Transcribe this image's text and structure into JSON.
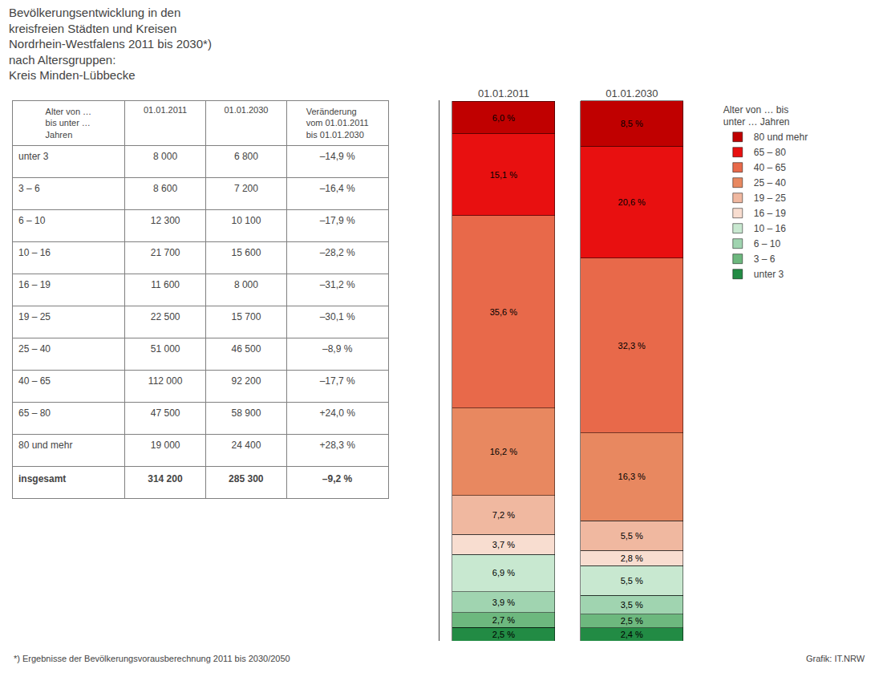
{
  "chart_data": [
    {
      "type": "bar",
      "title": "Bevölkerungsentwicklung in den\nkreisfreien Städten und Kreisen\nNordrhein-Westfalens 2011 bis 2030*)\nnach Altersgruppen:\nKreis Minden-Lübbecke",
      "categories": [
        "01.01.2011",
        "01.01.2030"
      ],
      "series": [
        {
          "name": "unter 3",
          "color": "#228b44",
          "values": [
            2.5,
            2.4
          ],
          "value_labels": [
            "2,5 %",
            "2,4 %"
          ]
        },
        {
          "name": "3 – 6",
          "color": "#6db87e",
          "values": [
            2.7,
            2.5
          ],
          "value_labels": [
            "2,7 %",
            "2,5 %"
          ]
        },
        {
          "name": "6 – 10",
          "color": "#a0d4b0",
          "values": [
            3.9,
            3.5
          ],
          "value_labels": [
            "3,9 %",
            "3,5 %"
          ]
        },
        {
          "name": "10 – 16",
          "color": "#c8e8d0",
          "values": [
            6.9,
            5.5
          ],
          "value_labels": [
            "6,9 %",
            "5,5 %"
          ]
        },
        {
          "name": "16 – 19",
          "color": "#f8ddd0",
          "values": [
            3.7,
            2.8
          ],
          "value_labels": [
            "3,7 %",
            "2,8 %"
          ]
        },
        {
          "name": "19 – 25",
          "color": "#f0b8a0",
          "values": [
            7.2,
            5.5
          ],
          "value_labels": [
            "7,2 %",
            "5,5 %"
          ]
        },
        {
          "name": "25 – 40",
          "color": "#e88860",
          "values": [
            16.2,
            16.3
          ],
          "value_labels": [
            "16,2 %",
            "16,3 %"
          ]
        },
        {
          "name": "40 – 65",
          "color": "#e8694a",
          "values": [
            35.6,
            32.3
          ],
          "value_labels": [
            "35,6 %",
            "32,3 %"
          ]
        },
        {
          "name": "65 – 80",
          "color": "#e81010",
          "values": [
            15.1,
            20.6
          ],
          "value_labels": [
            "15,1 %",
            "20,6 %"
          ]
        },
        {
          "name": "80 und mehr",
          "color": "#c00000",
          "values": [
            6.0,
            8.5
          ],
          "value_labels": [
            "6,0 %",
            "8,5 %"
          ]
        }
      ],
      "stacked": true,
      "data_labels": true,
      "ylim": [
        0,
        100
      ],
      "tick_labels": "x",
      "grid": false,
      "legend": "right",
      "legend_title": "Alter von … bis\nunter … Jahren",
      "annotations": [
        "*) Ergebnisse der Bevölkerungsvorausberechnung 2011 bis 2030/2050",
        "Grafik: IT.NRW"
      ]
    },
    {
      "type": "table",
      "columns": [
        "Alter von …\nbis unter …\nJahren",
        "01.01.2011",
        "01.01.2030",
        "Veränderung\nvom 01.01.2011\nbis 01.01.2030"
      ],
      "rows": [
        [
          "unter 3",
          "8 000",
          "6 800",
          "–14,9 %"
        ],
        [
          "3 – 6",
          "8 600",
          "7 200",
          "–16,4 %"
        ],
        [
          "6 – 10",
          "12 300",
          "10 100",
          "–17,9 %"
        ],
        [
          "10 – 16",
          "21 700",
          "15 600",
          "–28,2 %"
        ],
        [
          "16 – 19",
          "11 600",
          "8 000",
          "–31,2 %"
        ],
        [
          "19 – 25",
          "22 500",
          "15 700",
          "–30,1 %"
        ],
        [
          "25 – 40",
          "51 000",
          "46 500",
          "–8,9 %"
        ],
        [
          "40 – 65",
          "112 000",
          "92 200",
          "–17,7 %"
        ],
        [
          "65 – 80",
          "47 500",
          "58 900",
          "+24,0 %"
        ],
        [
          "80 und mehr",
          "19 000",
          "24 400",
          "+28,3 %"
        ]
      ],
      "total": [
        "insgesamt",
        "314 200",
        "285 300",
        "–9,2 %"
      ]
    }
  ]
}
